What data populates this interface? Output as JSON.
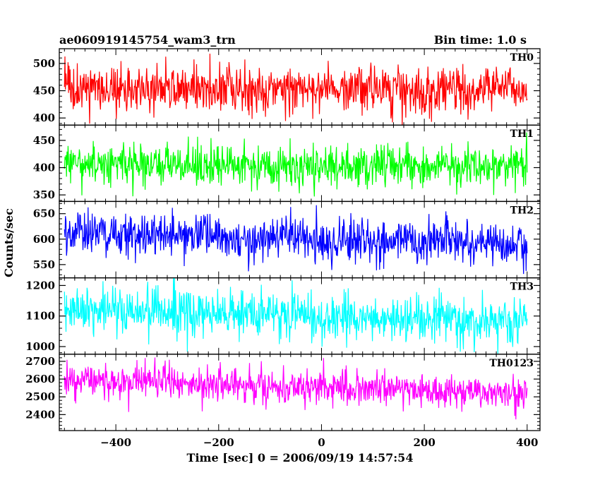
{
  "header": {
    "title": "ae060919145754_wam3_trn",
    "bin_time": "Bin time: 1.0 s"
  },
  "chart_data": {
    "type": "line",
    "xlabel": "Time [sec] 0 = 2006/09/19 14:57:54",
    "ylabel": "Counts/sec",
    "xlim": [
      -510,
      425
    ],
    "x_ticks": [
      -400,
      -200,
      0,
      200,
      400
    ],
    "x_tick_labels": [
      "−400",
      "−200",
      "0",
      "200",
      "400"
    ],
    "x_start": -500,
    "x_end": 400,
    "bin_time": 1.0,
    "grid": false,
    "legend": "none",
    "series": [
      {
        "name": "TH0",
        "color": "#ff0000",
        "ylim": [
          387,
          527
        ],
        "y_ticks": [
          400,
          450,
          500
        ],
        "level_start": 452,
        "level_end": 452,
        "noise": 20
      },
      {
        "name": "TH1",
        "color": "#00ff00",
        "ylim": [
          338,
          478
        ],
        "y_ticks": [
          350,
          400,
          450
        ],
        "level_start": 408,
        "level_end": 400,
        "noise": 20
      },
      {
        "name": "TH2",
        "color": "#0000ff",
        "ylim": [
          524,
          674
        ],
        "y_ticks": [
          550,
          600,
          650
        ],
        "level_start": 612,
        "level_end": 590,
        "noise": 22
      },
      {
        "name": "TH3",
        "color": "#00ffff",
        "ylim": [
          975,
          1225
        ],
        "y_ticks": [
          1000,
          1100,
          1200
        ],
        "level_start": 1125,
        "level_end": 1075,
        "noise": 38
      },
      {
        "name": "TH0123",
        "color": "#ff00ff",
        "ylim": [
          2310,
          2740
        ],
        "y_ticks": [
          2400,
          2500,
          2600,
          2700
        ],
        "level_start": 2595,
        "level_end": 2520,
        "noise": 50
      }
    ]
  }
}
